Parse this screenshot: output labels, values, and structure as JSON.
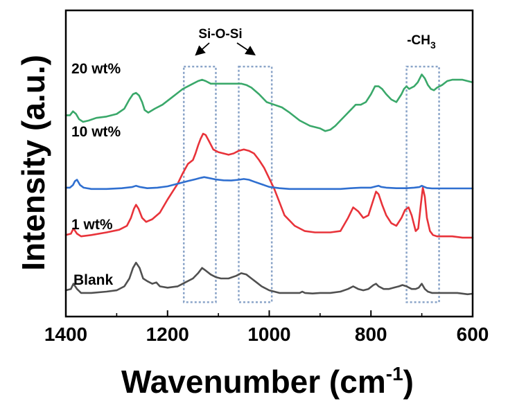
{
  "chart_data": {
    "type": "line",
    "xlabel_main": "Wavenumber (cm",
    "xlabel_sup": "-1",
    "xlabel_close": ")",
    "ylabel": "Intensity (a.u.)",
    "xlim": [
      1400,
      600
    ],
    "x_reversed": true,
    "y_ticks_shown": false,
    "grid": false,
    "x_ticks": [
      "1400",
      "1200",
      "1000",
      "800",
      "600"
    ],
    "x_tick_values": [
      1400,
      1200,
      1000,
      800,
      600
    ],
    "ylim": [
      0,
      1
    ],
    "series": [
      {
        "name": "Blank",
        "color": "#505050",
        "x": [
          1400,
          1390,
          1385,
          1378,
          1370,
          1350,
          1320,
          1300,
          1285,
          1275,
          1268,
          1262,
          1255,
          1248,
          1240,
          1230,
          1222,
          1215,
          1200,
          1180,
          1165,
          1150,
          1140,
          1132,
          1125,
          1115,
          1105,
          1095,
          1080,
          1065,
          1055,
          1045,
          1035,
          1025,
          1015,
          1000,
          980,
          960,
          940,
          935,
          930,
          915,
          900,
          880,
          860,
          845,
          835,
          825,
          815,
          805,
          795,
          790,
          785,
          775,
          765,
          755,
          745,
          738,
          730,
          720,
          712,
          706,
          700,
          694,
          688,
          680,
          665,
          650,
          630,
          610,
          600
        ],
        "y": [
          0.055,
          0.06,
          0.08,
          0.06,
          0.045,
          0.045,
          0.05,
          0.055,
          0.07,
          0.1,
          0.14,
          0.16,
          0.14,
          0.1,
          0.09,
          0.08,
          0.085,
          0.07,
          0.065,
          0.07,
          0.085,
          0.1,
          0.12,
          0.14,
          0.13,
          0.115,
          0.105,
          0.1,
          0.1,
          0.11,
          0.12,
          0.115,
          0.1,
          0.085,
          0.07,
          0.055,
          0.045,
          0.045,
          0.045,
          0.05,
          0.045,
          0.043,
          0.045,
          0.045,
          0.05,
          0.06,
          0.07,
          0.06,
          0.055,
          0.06,
          0.075,
          0.08,
          0.07,
          0.06,
          0.06,
          0.065,
          0.07,
          0.075,
          0.07,
          0.06,
          0.06,
          0.065,
          0.08,
          0.06,
          0.05,
          0.045,
          0.045,
          0.045,
          0.045,
          0.04,
          0.042
        ]
      },
      {
        "name": "1 wt%",
        "color": "#e8333a",
        "x": [
          1400,
          1390,
          1385,
          1378,
          1370,
          1350,
          1320,
          1295,
          1280,
          1272,
          1266,
          1262,
          1257,
          1250,
          1242,
          1230,
          1215,
          1200,
          1190,
          1180,
          1170,
          1160,
          1150,
          1145,
          1140,
          1135,
          1130,
          1125,
          1118,
          1110,
          1100,
          1090,
          1080,
          1070,
          1060,
          1050,
          1040,
          1030,
          1020,
          1010,
          1000,
          990,
          980,
          970,
          950,
          930,
          910,
          895,
          880,
          860,
          845,
          835,
          825,
          815,
          805,
          795,
          790,
          785,
          778,
          770,
          760,
          750,
          740,
          733,
          726,
          720,
          712,
          707,
          702,
          698,
          694,
          690,
          684,
          678,
          670,
          660,
          640,
          620,
          600
        ],
        "y": [
          0.265,
          0.27,
          0.29,
          0.27,
          0.26,
          0.265,
          0.275,
          0.285,
          0.3,
          0.33,
          0.365,
          0.38,
          0.365,
          0.33,
          0.315,
          0.325,
          0.35,
          0.4,
          0.43,
          0.46,
          0.5,
          0.535,
          0.55,
          0.575,
          0.605,
          0.63,
          0.65,
          0.645,
          0.62,
          0.59,
          0.58,
          0.575,
          0.57,
          0.575,
          0.585,
          0.59,
          0.585,
          0.575,
          0.55,
          0.52,
          0.48,
          0.44,
          0.39,
          0.34,
          0.3,
          0.28,
          0.275,
          0.275,
          0.275,
          0.28,
          0.33,
          0.37,
          0.355,
          0.33,
          0.34,
          0.4,
          0.43,
          0.42,
          0.38,
          0.34,
          0.31,
          0.3,
          0.33,
          0.36,
          0.37,
          0.34,
          0.28,
          0.29,
          0.38,
          0.445,
          0.41,
          0.33,
          0.28,
          0.265,
          0.26,
          0.26,
          0.26,
          0.255,
          0.255
        ]
      },
      {
        "name": "10 wt%",
        "color": "#2f6fd0",
        "x": [
          1400,
          1392,
          1386,
          1382,
          1378,
          1372,
          1365,
          1350,
          1320,
          1290,
          1270,
          1262,
          1255,
          1240,
          1220,
          1200,
          1180,
          1160,
          1145,
          1135,
          1128,
          1120,
          1105,
          1090,
          1075,
          1060,
          1050,
          1040,
          1030,
          1015,
          1000,
          980,
          960,
          940,
          920,
          900,
          880,
          860,
          840,
          820,
          800,
          790,
          785,
          780,
          770,
          750,
          730,
          715,
          705,
          700,
          695,
          690,
          680,
          660,
          640,
          620,
          600
        ],
        "y": [
          0.445,
          0.445,
          0.455,
          0.47,
          0.475,
          0.455,
          0.445,
          0.44,
          0.44,
          0.443,
          0.447,
          0.452,
          0.448,
          0.443,
          0.445,
          0.45,
          0.46,
          0.47,
          0.477,
          0.482,
          0.485,
          0.482,
          0.476,
          0.473,
          0.472,
          0.475,
          0.478,
          0.475,
          0.468,
          0.458,
          0.448,
          0.443,
          0.44,
          0.44,
          0.44,
          0.44,
          0.44,
          0.44,
          0.443,
          0.445,
          0.445,
          0.45,
          0.452,
          0.448,
          0.445,
          0.443,
          0.443,
          0.445,
          0.447,
          0.452,
          0.448,
          0.444,
          0.442,
          0.442,
          0.442,
          0.442,
          0.442
        ]
      },
      {
        "name": "20 wt%",
        "color": "#3aa86a",
        "x": [
          1400,
          1392,
          1386,
          1380,
          1374,
          1366,
          1355,
          1340,
          1320,
          1300,
          1285,
          1275,
          1268,
          1262,
          1256,
          1250,
          1245,
          1238,
          1225,
          1210,
          1190,
          1170,
          1150,
          1140,
          1132,
          1125,
          1115,
          1105,
          1090,
          1070,
          1055,
          1045,
          1035,
          1020,
          1005,
          990,
          975,
          960,
          940,
          920,
          900,
          890,
          880,
          870,
          860,
          850,
          840,
          830,
          820,
          810,
          800,
          792,
          785,
          778,
          770,
          760,
          750,
          740,
          735,
          730,
          725,
          715,
          708,
          700,
          694,
          688,
          682,
          676,
          670,
          660,
          650,
          640,
          630,
          620,
          610,
          600
        ],
        "y": [
          0.72,
          0.72,
          0.735,
          0.725,
          0.705,
          0.695,
          0.7,
          0.71,
          0.715,
          0.725,
          0.745,
          0.78,
          0.8,
          0.805,
          0.795,
          0.77,
          0.74,
          0.73,
          0.745,
          0.76,
          0.79,
          0.82,
          0.84,
          0.85,
          0.855,
          0.85,
          0.84,
          0.84,
          0.84,
          0.84,
          0.84,
          0.835,
          0.825,
          0.8,
          0.77,
          0.76,
          0.75,
          0.73,
          0.7,
          0.68,
          0.67,
          0.66,
          0.665,
          0.68,
          0.7,
          0.72,
          0.74,
          0.76,
          0.76,
          0.77,
          0.8,
          0.83,
          0.83,
          0.82,
          0.8,
          0.78,
          0.77,
          0.8,
          0.82,
          0.83,
          0.82,
          0.83,
          0.845,
          0.875,
          0.86,
          0.835,
          0.82,
          0.815,
          0.825,
          0.835,
          0.85,
          0.855,
          0.855,
          0.855,
          0.85,
          0.845
        ]
      }
    ],
    "annotations": [
      {
        "text": "Si-O-Si",
        "type": "group-label"
      },
      {
        "text": "-CH",
        "sub": "3",
        "type": "group-label"
      }
    ],
    "regions": [
      {
        "x_from": 1168,
        "x_to": 1105,
        "y_from": 0.01,
        "y_to": 0.905,
        "color": "#8aa4c8"
      },
      {
        "x_from": 1060,
        "x_to": 995,
        "y_from": 0.01,
        "y_to": 0.905,
        "color": "#8aa4c8"
      },
      {
        "x_from": 730,
        "x_to": 666,
        "y_from": 0.01,
        "y_to": 0.905,
        "color": "#8aa4c8"
      }
    ]
  }
}
